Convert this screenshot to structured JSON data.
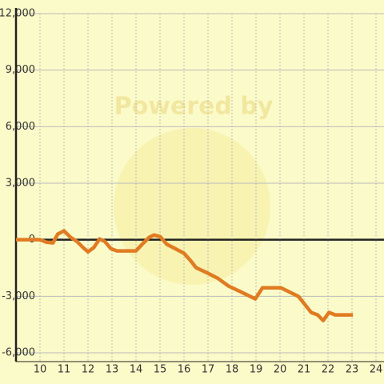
{
  "chart_data": {
    "type": "line",
    "watermark": "Powered by",
    "x": [
      9,
      10,
      10.27,
      10.54,
      10.74,
      11,
      11.27,
      11.54,
      11.8,
      12,
      12.24,
      12.48,
      12.7,
      12.95,
      13.2,
      13.55,
      14,
      14.28,
      14.55,
      14.75,
      15,
      15.29,
      15.55,
      16,
      16.3,
      16.5,
      17,
      17.4,
      17.86,
      18.36,
      18.97,
      19.27,
      20.04,
      20.77,
      21.3,
      21.57,
      21.8,
      22.04,
      22.3,
      23.04
    ],
    "series": [
      {
        "color": "#e07b22",
        "values": [
          0,
          0,
          -130,
          -170,
          300,
          470,
          130,
          -90,
          -420,
          -640,
          -420,
          40,
          -90,
          -470,
          -590,
          -590,
          -590,
          -210,
          130,
          250,
          170,
          -250,
          -420,
          -720,
          -1150,
          -1480,
          -1780,
          -2040,
          -2460,
          -2760,
          -3140,
          -2550,
          -2550,
          -3010,
          -3860,
          -3990,
          -4290,
          -3860,
          -3990,
          -3990
        ]
      }
    ],
    "xlim": [
      9,
      24
    ],
    "xticks": [
      10,
      11,
      12,
      13,
      14,
      15,
      16,
      17,
      18,
      19,
      20,
      21,
      22,
      23,
      24
    ],
    "ylim": [
      -6000,
      12000
    ],
    "yticks": [
      {
        "value": -6000,
        "label": "-6,000"
      },
      {
        "value": -3000,
        "label": "-3,000"
      },
      0,
      {
        "value": 3000,
        "label": "3,000"
      },
      {
        "value": 6000,
        "label": "6,000"
      },
      {
        "value": 9000,
        "label": "9,000"
      },
      {
        "value": 12000,
        "label": "12,000"
      }
    ],
    "grid": true
  }
}
